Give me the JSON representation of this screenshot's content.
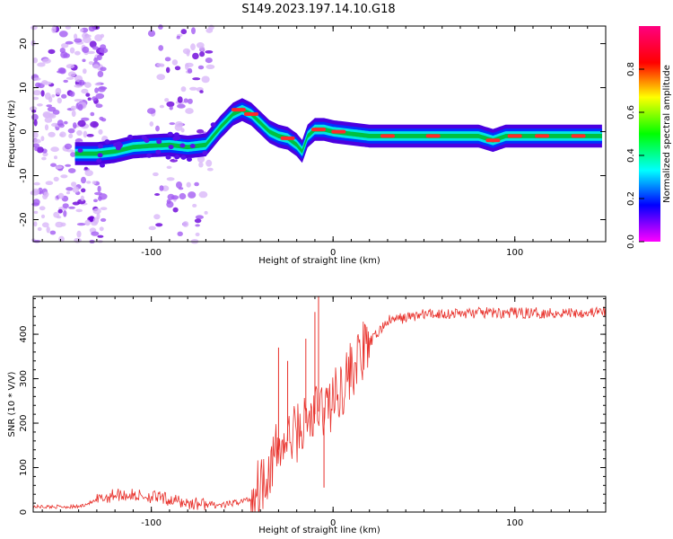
{
  "title": "S149.2023.197.14.10.G18",
  "colorbar": {
    "label": "Normalized spectral amplitude",
    "ticks": [
      "0.0",
      "0.2",
      "0.4",
      "0.6",
      "0.8"
    ],
    "range": [
      0,
      1
    ],
    "colormap": "hsv (0 magenta-blue at bottom, red at top)"
  },
  "chart_data": [
    {
      "type": "heatmap",
      "xlabel": "Height of straight line (km)",
      "ylabel": "Frequency (Hz)",
      "xlim": [
        -165,
        150
      ],
      "ylim": [
        -25,
        24
      ],
      "xticks": [
        "-100",
        "0",
        "100"
      ],
      "yticks": [
        "-20",
        "-10",
        "0",
        "10",
        "20"
      ],
      "ridge": {
        "description": "dominant frequency trace",
        "x": [
          -142,
          -130,
          -120,
          -110,
          -100,
          -90,
          -80,
          -70,
          -62,
          -55,
          -50,
          -45,
          -40,
          -35,
          -30,
          -25,
          -20,
          -17,
          -14,
          -10,
          -5,
          0,
          10,
          20,
          40,
          60,
          80,
          88,
          95,
          110,
          130,
          148
        ],
        "y": [
          -5,
          -5,
          -4.5,
          -3.5,
          -3.2,
          -3,
          -3.5,
          -3,
          1,
          4,
          5,
          4,
          2,
          0,
          -1,
          -1.5,
          -3,
          -4.5,
          -1,
          0.5,
          0.5,
          0,
          -0.5,
          -1,
          -1,
          -1,
          -1,
          -2,
          -1,
          -1,
          -1,
          -1
        ]
      },
      "noise_regions": [
        {
          "x_range": [
            -165,
            -125
          ],
          "y_range": [
            -25,
            24
          ]
        },
        {
          "x_range": [
            -100,
            -67
          ],
          "y_range": [
            -25,
            24
          ]
        }
      ]
    },
    {
      "type": "line",
      "xlabel": "Height of straight line (km)",
      "ylabel": "SNR (10 * V/V)",
      "xlim": [
        -165,
        150
      ],
      "ylim": [
        0,
        485
      ],
      "xticks": [
        "-100",
        "0",
        "100"
      ],
      "yticks": [
        "0",
        "100",
        "200",
        "300",
        "400"
      ],
      "series": [
        {
          "color": "#e8302a",
          "envelope_x": [
            -165,
            -140,
            -120,
            -100,
            -80,
            -60,
            -45,
            -38,
            -30,
            -20,
            -10,
            0,
            10,
            20,
            30,
            50,
            80,
            100,
            120,
            150
          ],
          "envelope_y": [
            12,
            12,
            40,
            35,
            20,
            15,
            30,
            80,
            140,
            180,
            220,
            250,
            320,
            380,
            430,
            445,
            448,
            448,
            448,
            450
          ],
          "spikes": [
            {
              "x": -8,
              "y": 485
            },
            {
              "x": -5,
              "y": 55
            },
            {
              "x": -15,
              "y": 390
            },
            {
              "x": -25,
              "y": 340
            },
            {
              "x": -30,
              "y": 370
            },
            {
              "x": -10,
              "y": 450
            }
          ]
        }
      ]
    }
  ]
}
